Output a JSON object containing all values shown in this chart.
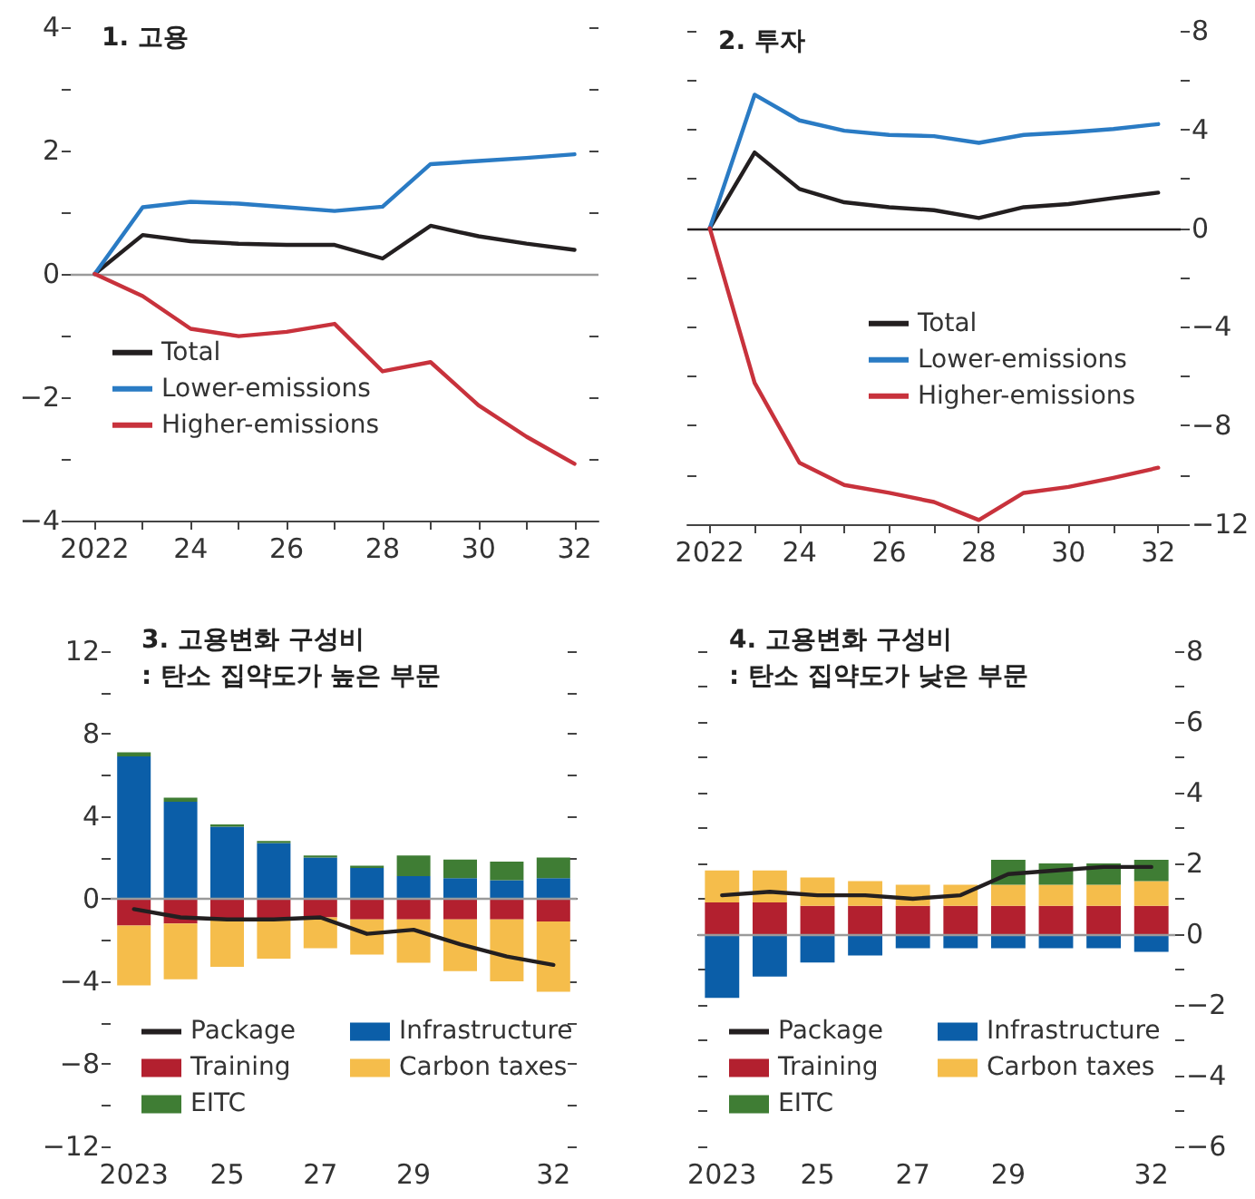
{
  "chart_data": [
    {
      "type": "line",
      "title": "1. 고용",
      "x": [
        2022,
        2023,
        2024,
        2025,
        2026,
        2027,
        2028,
        2029,
        2030,
        2031,
        2032
      ],
      "series": [
        {
          "name": "Total",
          "color": "#231f20",
          "values": [
            0,
            0.63,
            0.53,
            0.49,
            0.47,
            0.47,
            0.25,
            0.78,
            0.61,
            0.49,
            0.39
          ]
        },
        {
          "name": "Lower-emissions",
          "color": "#2a7bc4",
          "values": [
            0,
            1.08,
            1.17,
            1.14,
            1.08,
            1.02,
            1.09,
            1.78,
            1.83,
            1.88,
            1.94
          ]
        },
        {
          "name": "Higher-emissions",
          "color": "#c8323c",
          "values": [
            0,
            -0.36,
            -0.89,
            -1.01,
            -0.94,
            -0.81,
            -1.58,
            -1.43,
            -2.13,
            -2.64,
            -3.08
          ]
        }
      ],
      "xlim": [
        2021.5,
        2032.5
      ],
      "xticks": [
        {
          "value": 2022,
          "label": "2022"
        },
        {
          "value": 2023,
          "label": null
        },
        {
          "value": 2024,
          "label": "24"
        },
        {
          "value": 2025,
          "label": null
        },
        {
          "value": 2026,
          "label": "26"
        },
        {
          "value": 2027,
          "label": null
        },
        {
          "value": 2028,
          "label": "28"
        },
        {
          "value": 2029,
          "label": null
        },
        {
          "value": 2030,
          "label": "30"
        },
        {
          "value": 2031,
          "label": null
        },
        {
          "value": 2032,
          "label": "32"
        }
      ],
      "ylim": [
        -4,
        4
      ],
      "yticks": [
        {
          "value": -4,
          "label": "−4"
        },
        {
          "value": -3,
          "label": null
        },
        {
          "value": -2,
          "label": "−2"
        },
        {
          "value": -1,
          "label": null
        },
        0,
        {
          "value": 1,
          "label": null
        },
        2,
        {
          "value": 3,
          "label": null
        },
        4
      ],
      "ref_lines": [
        {
          "axis": "y",
          "value": 0,
          "color": "#9a9a9a"
        }
      ],
      "grid": false,
      "legend": "bottom left",
      "marker": "none",
      "line_style": "solid"
    },
    {
      "type": "line",
      "title": "2. 투자",
      "x": [
        2022,
        2023,
        2024,
        2025,
        2026,
        2027,
        2028,
        2029,
        2030,
        2031,
        2032
      ],
      "series": [
        {
          "name": "Total",
          "color": "#231f20",
          "axis": "y2",
          "values": [
            0,
            3.07,
            1.59,
            1.05,
            0.85,
            0.73,
            0.41,
            0.85,
            0.98,
            1.22,
            1.44
          ]
        },
        {
          "name": "Lower-emissions",
          "color": "#2a7bc4",
          "axis": "y2",
          "values": [
            0,
            5.41,
            4.37,
            3.95,
            3.78,
            3.73,
            3.46,
            3.78,
            3.88,
            4.02,
            4.22
          ]
        },
        {
          "name": "Higher-emissions",
          "color": "#c8323c",
          "axis": "y2",
          "values": [
            0,
            -6.27,
            -9.51,
            -10.41,
            -10.73,
            -11.1,
            -11.83,
            -10.73,
            -10.49,
            -10.12,
            -9.71
          ]
        }
      ],
      "xlim": [
        2021.5,
        2032.5
      ],
      "xticks": [
        {
          "value": 2022,
          "label": "2022"
        },
        {
          "value": 2023,
          "label": null
        },
        {
          "value": 2024,
          "label": "24"
        },
        {
          "value": 2025,
          "label": null
        },
        {
          "value": 2026,
          "label": "26"
        },
        {
          "value": 2027,
          "label": null
        },
        {
          "value": 2028,
          "label": "28"
        },
        {
          "value": 2029,
          "label": null
        },
        {
          "value": 2030,
          "label": "30"
        },
        {
          "value": 2031,
          "label": null
        },
        {
          "value": 2032,
          "label": "32"
        }
      ],
      "y2lim": [
        -12,
        8
      ],
      "y2ticks": [
        {
          "value": -12,
          "label": "−12"
        },
        {
          "value": -10,
          "label": null
        },
        {
          "value": -8,
          "label": "−8"
        },
        {
          "value": -6,
          "label": null
        },
        {
          "value": -4,
          "label": "−4"
        },
        {
          "value": -2,
          "label": null
        },
        0,
        {
          "value": 2,
          "label": null
        },
        4,
        {
          "value": 6,
          "label": null
        },
        8
      ],
      "ref_lines": [
        {
          "axis": "y2",
          "value": 0,
          "color": "#231f20"
        }
      ],
      "grid": false,
      "legend": "bottom right",
      "marker": "none",
      "line_style": "solid"
    },
    {
      "type": "bar",
      "title": "3. 고용변화 구성비",
      "subtitle": ": 탄소 집약도가 높은 부문",
      "categories": [
        "2023",
        null,
        "25",
        null,
        "27",
        null,
        "29",
        null,
        null,
        "32"
      ],
      "stacked": true,
      "series": [
        {
          "name": "Package",
          "type": "line",
          "color": "#231f20",
          "values": [
            -0.5,
            -0.9,
            -1.0,
            -1.0,
            -0.9,
            -1.7,
            -1.5,
            -2.2,
            -2.8,
            -3.2
          ]
        },
        {
          "name": "Infrastructure",
          "color": "#0b5ea8",
          "values": [
            6.9,
            4.7,
            3.5,
            2.7,
            2.0,
            1.5,
            1.1,
            1.0,
            0.9,
            1.0
          ]
        },
        {
          "name": "Training",
          "color": "#b3202f",
          "values": [
            -1.3,
            -1.2,
            -1.0,
            -1.0,
            -0.9,
            -1.0,
            -1.0,
            -1.0,
            -1.0,
            -1.1
          ]
        },
        {
          "name": "Carbon taxes",
          "color": "#f5bd4b",
          "values": [
            -2.9,
            -2.7,
            -2.3,
            -1.9,
            -1.5,
            -1.7,
            -2.1,
            -2.5,
            -3.0,
            -3.4
          ]
        },
        {
          "name": "EITC",
          "color": "#3f7d34",
          "values": [
            0.2,
            0.2,
            0.1,
            0.1,
            0.1,
            0.1,
            1.0,
            0.9,
            0.9,
            1.0
          ]
        }
      ],
      "ylim": [
        -12,
        12
      ],
      "yticks": [
        {
          "value": -12,
          "label": "−12"
        },
        {
          "value": -10,
          "label": null
        },
        {
          "value": -8,
          "label": "−8"
        },
        {
          "value": -6,
          "label": null
        },
        {
          "value": -4,
          "label": "−4"
        },
        {
          "value": -2,
          "label": null
        },
        0,
        {
          "value": 2,
          "label": null
        },
        4,
        {
          "value": 6,
          "label": null
        },
        8,
        {
          "value": 10,
          "label": null
        },
        12
      ],
      "ref_lines": [
        {
          "axis": "y",
          "value": 0,
          "color": "#9a9a9a"
        }
      ],
      "grid": false,
      "legend": "bottom",
      "marker": "none",
      "line_style": "solid"
    },
    {
      "type": "bar",
      "title": "4. 고용변화 구성비",
      "subtitle": ": 탄소 집약도가 낮은 부문",
      "categories": [
        "2023",
        null,
        "25",
        null,
        "27",
        null,
        "29",
        null,
        null,
        "32"
      ],
      "stacked": true,
      "series": [
        {
          "name": "Package",
          "type": "line",
          "color": "#231f20",
          "axis": "y2",
          "values": [
            1.1,
            1.2,
            1.1,
            1.1,
            1.0,
            1.1,
            1.7,
            1.8,
            1.9,
            1.9
          ]
        },
        {
          "name": "Infrastructure",
          "color": "#0b5ea8",
          "axis": "y2",
          "values": [
            -1.8,
            -1.2,
            -0.8,
            -0.6,
            -0.4,
            -0.4,
            -0.4,
            -0.4,
            -0.4,
            -0.5
          ]
        },
        {
          "name": "Training",
          "color": "#b3202f",
          "axis": "y2",
          "values": [
            0.9,
            0.9,
            0.8,
            0.8,
            0.8,
            0.8,
            0.8,
            0.8,
            0.8,
            0.8
          ]
        },
        {
          "name": "Carbon taxes",
          "color": "#f5bd4b",
          "axis": "y2",
          "values": [
            0.9,
            0.9,
            0.8,
            0.7,
            0.6,
            0.6,
            0.6,
            0.6,
            0.6,
            0.7
          ]
        },
        {
          "name": "EITC",
          "color": "#3f7d34",
          "axis": "y2",
          "values": [
            0,
            0,
            0,
            0,
            0,
            0,
            0.7,
            0.6,
            0.6,
            0.6
          ]
        }
      ],
      "y2lim": [
        -6,
        8
      ],
      "y2ticks": [
        {
          "value": -6,
          "label": "−6"
        },
        {
          "value": -5,
          "label": null
        },
        {
          "value": -4,
          "label": "−4"
        },
        {
          "value": -3,
          "label": null
        },
        {
          "value": -2,
          "label": "−2"
        },
        {
          "value": -1,
          "label": null
        },
        0,
        {
          "value": 1,
          "label": null
        },
        2,
        {
          "value": 3,
          "label": null
        },
        4,
        {
          "value": 5,
          "label": null
        },
        6,
        {
          "value": 7,
          "label": null
        },
        8
      ],
      "ref_lines": [
        {
          "axis": "y2",
          "value": 0,
          "color": "#9a9a9a"
        }
      ],
      "grid": false,
      "legend": "bottom",
      "marker": "none",
      "line_style": "solid"
    }
  ]
}
